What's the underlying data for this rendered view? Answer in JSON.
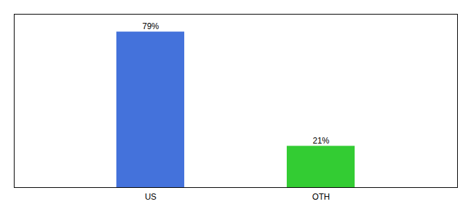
{
  "chart_data": {
    "type": "bar",
    "categories": [
      "US",
      "OTH"
    ],
    "values": [
      79,
      21
    ],
    "value_labels": [
      "79%",
      "21%"
    ],
    "colors": [
      "#4472db",
      "#33cc33"
    ],
    "ylim": [
      0,
      88
    ],
    "yticks": [],
    "tick_labels": "x",
    "data_labels": true,
    "grid": false
  }
}
